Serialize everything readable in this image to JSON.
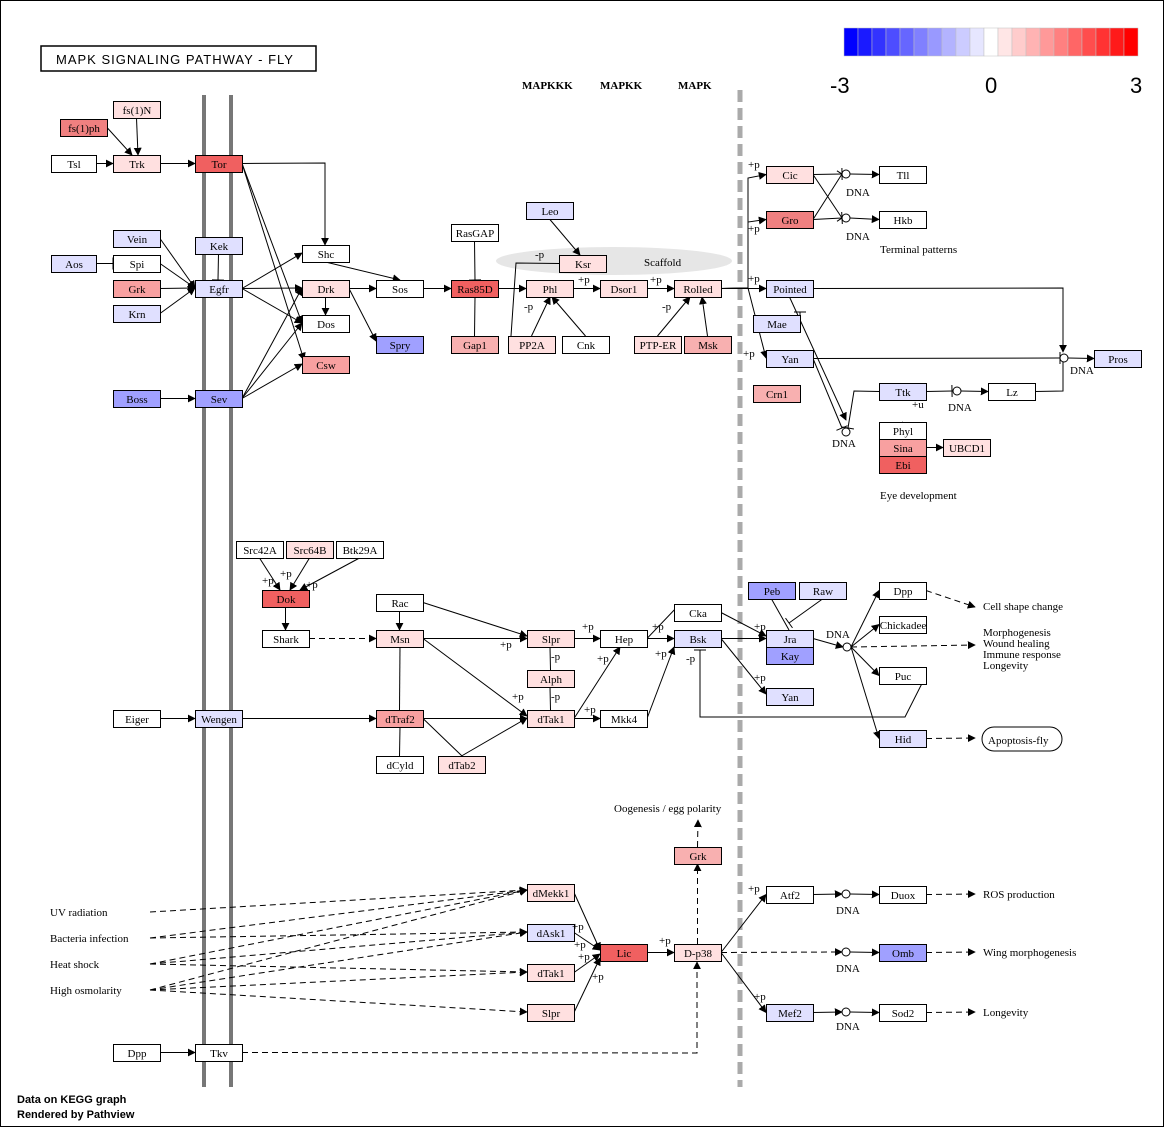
{
  "title": "MAPK SIGNALING PATHWAY - FLY",
  "legend": {
    "ticks": [
      "-3",
      "0",
      "3"
    ],
    "colors": [
      "#0000ff",
      "#1a1aff",
      "#3333ff",
      "#4d4dff",
      "#6666ff",
      "#8080ff",
      "#9999ff",
      "#b3b3ff",
      "#ccccff",
      "#e6e6ff",
      "#ffffff",
      "#ffe6e6",
      "#ffcccc",
      "#ffb3b3",
      "#ff9999",
      "#ff8080",
      "#ff6666",
      "#ff4d4d",
      "#ff3333",
      "#ff1a1a",
      "#ff0000"
    ]
  },
  "headers": {
    "mapkkk": "MAPKKK",
    "mapkk": "MAPKK",
    "mapk": "MAPK"
  },
  "footer": {
    "line1": "Data on KEGG graph",
    "line2": "Rendered by Pathview"
  },
  "nodes": [
    {
      "id": "fs1N",
      "label": "fs(1)N",
      "color": "#ffe0e0"
    },
    {
      "id": "fs1ph",
      "label": "fs(1)ph",
      "color": "#f08080"
    },
    {
      "id": "Tsl",
      "label": "Tsl",
      "color": "#ffffff"
    },
    {
      "id": "Trk",
      "label": "Trk",
      "color": "#ffe0e0"
    },
    {
      "id": "Tor",
      "label": "Tor",
      "color": "#f06060"
    },
    {
      "id": "Vein",
      "label": "Vein",
      "color": "#e0e0ff"
    },
    {
      "id": "Kek",
      "label": "Kek",
      "color": "#e0e0ff"
    },
    {
      "id": "Aos",
      "label": "Aos",
      "color": "#e0e0ff"
    },
    {
      "id": "Spi",
      "label": "Spi",
      "color": "#ffffff"
    },
    {
      "id": "Egfr",
      "label": "Egfr",
      "color": "#e0e0ff"
    },
    {
      "id": "Grk1",
      "label": "Grk",
      "color": "#f8a0a0"
    },
    {
      "id": "Krn",
      "label": "Krn",
      "color": "#e0e0ff"
    },
    {
      "id": "Boss",
      "label": "Boss",
      "color": "#a0a0ff"
    },
    {
      "id": "Sev",
      "label": "Sev",
      "color": "#a0a0ff"
    },
    {
      "id": "Shc",
      "label": "Shc",
      "color": "#ffffff"
    },
    {
      "id": "Drk",
      "label": "Drk",
      "color": "#ffe0e0"
    },
    {
      "id": "Dos",
      "label": "Dos",
      "color": "#ffffff"
    },
    {
      "id": "Csw",
      "label": "Csw",
      "color": "#f8a0a0"
    },
    {
      "id": "Sos",
      "label": "Sos",
      "color": "#ffffff"
    },
    {
      "id": "Spry",
      "label": "Spry",
      "color": "#a0a0ff"
    },
    {
      "id": "RasGAP",
      "label": "RasGAP",
      "color": "#ffffff"
    },
    {
      "id": "Ras85D",
      "label": "Ras85D",
      "color": "#f06060"
    },
    {
      "id": "Gap1",
      "label": "Gap1",
      "color": "#f8b0b0"
    },
    {
      "id": "Leo",
      "label": "Leo",
      "color": "#e0e0ff"
    },
    {
      "id": "Ksr",
      "label": "Ksr",
      "color": "#ffe0e0"
    },
    {
      "id": "Phl",
      "label": "Phl",
      "color": "#ffe0e0"
    },
    {
      "id": "PP2A",
      "label": "PP2A",
      "color": "#ffe0e0"
    },
    {
      "id": "Cnk",
      "label": "Cnk",
      "color": "#ffffff"
    },
    {
      "id": "Dsor1",
      "label": "Dsor1",
      "color": "#ffe0e0"
    },
    {
      "id": "Rolled",
      "label": "Rolled",
      "color": "#ffe0e0"
    },
    {
      "id": "PTPER",
      "label": "PTP-ER",
      "color": "#ffe0e0"
    },
    {
      "id": "Msk",
      "label": "Msk",
      "color": "#f8b0b0"
    },
    {
      "id": "Cic",
      "label": "Cic",
      "color": "#ffe0e0"
    },
    {
      "id": "Gro",
      "label": "Gro",
      "color": "#f08080"
    },
    {
      "id": "Tll",
      "label": "Tll",
      "color": "#ffffff"
    },
    {
      "id": "Hkb",
      "label": "Hkb",
      "color": "#ffffff"
    },
    {
      "id": "Pointed",
      "label": "Pointed",
      "color": "#e0e0ff"
    },
    {
      "id": "Mae",
      "label": "Mae",
      "color": "#e0e0ff"
    },
    {
      "id": "Yan1",
      "label": "Yan",
      "color": "#e0e0ff"
    },
    {
      "id": "Crn1",
      "label": "Crn1",
      "color": "#f8b0b0"
    },
    {
      "id": "Ttk",
      "label": "Ttk",
      "color": "#e0e0ff"
    },
    {
      "id": "Lz",
      "label": "Lz",
      "color": "#ffffff"
    },
    {
      "id": "Pros",
      "label": "Pros",
      "color": "#e0e0ff"
    },
    {
      "id": "Phyl",
      "label": "Phyl",
      "color": "#ffffff"
    },
    {
      "id": "Sina",
      "label": "Sina",
      "color": "#f8a0a0"
    },
    {
      "id": "Ebi",
      "label": "Ebi",
      "color": "#f06060"
    },
    {
      "id": "UBCD1",
      "label": "UBCD1",
      "color": "#ffe0e0"
    },
    {
      "id": "Src42A",
      "label": "Src42A",
      "color": "#ffffff"
    },
    {
      "id": "Src64B",
      "label": "Src64B",
      "color": "#ffe0e0"
    },
    {
      "id": "Btk29A",
      "label": "Btk29A",
      "color": "#ffffff"
    },
    {
      "id": "Dok",
      "label": "Dok",
      "color": "#f06060"
    },
    {
      "id": "Shark",
      "label": "Shark",
      "color": "#ffffff"
    },
    {
      "id": "Rac",
      "label": "Rac",
      "color": "#ffffff"
    },
    {
      "id": "Msn",
      "label": "Msn",
      "color": "#ffe0e0"
    },
    {
      "id": "Slpr1",
      "label": "Slpr",
      "color": "#ffe0e0"
    },
    {
      "id": "Hep",
      "label": "Hep",
      "color": "#ffffff"
    },
    {
      "id": "Cka",
      "label": "Cka",
      "color": "#ffffff"
    },
    {
      "id": "Bsk",
      "label": "Bsk",
      "color": "#e0e0ff"
    },
    {
      "id": "Alph",
      "label": "Alph",
      "color": "#ffe0e0"
    },
    {
      "id": "dTak1a",
      "label": "dTak1",
      "color": "#ffe0e0"
    },
    {
      "id": "Mkk4",
      "label": "Mkk4",
      "color": "#ffffff"
    },
    {
      "id": "Peb",
      "label": "Peb",
      "color": "#a0a0ff"
    },
    {
      "id": "Raw",
      "label": "Raw",
      "color": "#e0e0ff"
    },
    {
      "id": "Jra",
      "label": "Jra",
      "color": "#e0e0ff"
    },
    {
      "id": "Kay",
      "label": "Kay",
      "color": "#a0a0ff"
    },
    {
      "id": "Yan2",
      "label": "Yan",
      "color": "#e0e0ff"
    },
    {
      "id": "Dpp1",
      "label": "Dpp",
      "color": "#ffffff"
    },
    {
      "id": "Chickadee",
      "label": "Chickadee",
      "color": "#ffffff"
    },
    {
      "id": "Puc",
      "label": "Puc",
      "color": "#ffffff"
    },
    {
      "id": "Hid",
      "label": "Hid",
      "color": "#e0e0ff"
    },
    {
      "id": "Eiger",
      "label": "Eiger",
      "color": "#ffffff"
    },
    {
      "id": "Wengen",
      "label": "Wengen",
      "color": "#e0e0ff"
    },
    {
      "id": "dTraf2",
      "label": "dTraf2",
      "color": "#f8a0a0"
    },
    {
      "id": "dCyld",
      "label": "dCyld",
      "color": "#ffffff"
    },
    {
      "id": "dTab2",
      "label": "dTab2",
      "color": "#ffe0e0"
    },
    {
      "id": "Grk2",
      "label": "Grk",
      "color": "#f8b0b0"
    },
    {
      "id": "dMekk1",
      "label": "dMekk1",
      "color": "#ffe0e0"
    },
    {
      "id": "dAsk1",
      "label": "dAsk1",
      "color": "#e0e0ff"
    },
    {
      "id": "dTak1b",
      "label": "dTak1",
      "color": "#ffe0e0"
    },
    {
      "id": "Slpr2",
      "label": "Slpr",
      "color": "#ffe0e0"
    },
    {
      "id": "Lic",
      "label": "Lic",
      "color": "#f06060"
    },
    {
      "id": "Dp38",
      "label": "D-p38",
      "color": "#ffe0e0"
    },
    {
      "id": "Atf2",
      "label": "Atf2",
      "color": "#ffffff"
    },
    {
      "id": "Duox",
      "label": "Duox",
      "color": "#ffffff"
    },
    {
      "id": "Omb",
      "label": "Omb",
      "color": "#a0a0ff"
    },
    {
      "id": "Mef2",
      "label": "Mef2",
      "color": "#e0e0ff"
    },
    {
      "id": "Sod2",
      "label": "Sod2",
      "color": "#ffffff"
    },
    {
      "id": "Dpp2",
      "label": "Dpp",
      "color": "#ffffff"
    },
    {
      "id": "Tkv",
      "label": "Tkv",
      "color": "#ffffff"
    }
  ],
  "labels": {
    "terminal_patterns": "Terminal patterns",
    "eye_development": "Eye development",
    "scaffold": "Scaffold",
    "cell_shape": "Cell shape change",
    "morph1": "Morphogenesis",
    "morph2": "Wound healing",
    "morph3": "Immune response",
    "morph4": "Longevity",
    "apoptosis": "Apoptosis-fly",
    "oogenesis": "Oogenesis / egg polarity",
    "ros": "ROS production",
    "wing": "Wing morphogenesis",
    "longevity": "Longevity",
    "uv": "UV radiation",
    "bacteria": "Bacteria infection",
    "heat": "Heat shock",
    "osmo": "High osmolarity",
    "dna": "DNA",
    "plus_p": "+p",
    "minus_p": "-p",
    "plus_u": "+u"
  }
}
